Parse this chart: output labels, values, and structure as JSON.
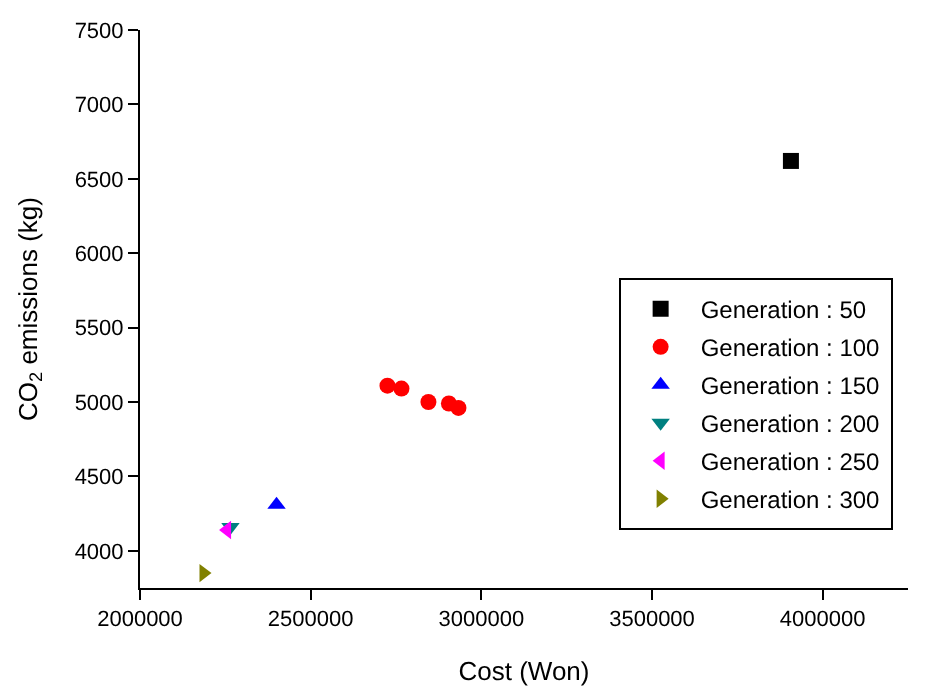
{
  "chart_data": {
    "type": "scatter",
    "xlabel": "Cost (Won)",
    "ylabel": "CO$_{2}$ emissions (kg)",
    "xlim": [
      2000000,
      4250000
    ],
    "xticks": [
      2000000,
      2500000,
      3000000,
      3500000,
      4000000
    ],
    "ylim": [
      3750,
      7500
    ],
    "yticks": [
      4000,
      4500,
      5000,
      5500,
      6000,
      6500,
      7000,
      7500
    ],
    "legend": "right",
    "series": [
      {
        "name": "Generation : 50",
        "color": "#000000",
        "marker": "square",
        "x": [
          3907000
        ],
        "values": [
          6620
        ]
      },
      {
        "name": "Generation : 100",
        "color": "#ff0000",
        "marker": "circle",
        "x": [
          2725000,
          2766000,
          2845000,
          2905000,
          2933000
        ],
        "values": [
          5110,
          5090,
          5000,
          4990,
          4960
        ]
      },
      {
        "name": "Generation : 150",
        "color": "#0000ff",
        "marker": "triangle-up",
        "x": [
          2400000
        ],
        "values": [
          4310
        ]
      },
      {
        "name": "Generation : 200",
        "color": "#008080",
        "marker": "triangle-down",
        "x": [
          2265000
        ],
        "values": [
          4160
        ]
      },
      {
        "name": "Generation : 250",
        "color": "#ff00ff",
        "marker": "triangle-left",
        "x": [
          2255000
        ],
        "values": [
          4140
        ]
      },
      {
        "name": "Generation : 300",
        "color": "#808000",
        "marker": "triangle-right",
        "x": [
          2186000
        ],
        "values": [
          3850
        ]
      }
    ]
  }
}
